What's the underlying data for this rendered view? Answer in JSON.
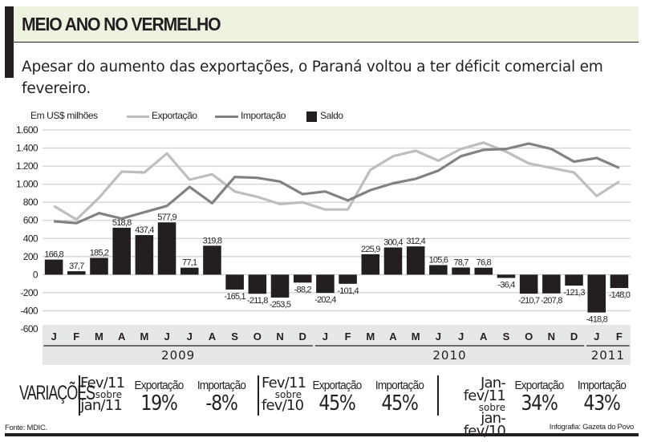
{
  "header": {
    "title": "MEIO ANO NO VERMELHO",
    "subtitle": "Apesar do aumento das exportações, o Paraná voltou a ter déficit comercial em fevereiro."
  },
  "legend": {
    "unit": "Em US$ milhões",
    "items": [
      {
        "label": "Exportação",
        "kind": "line",
        "color": "#bcbec0"
      },
      {
        "label": "Importação",
        "kind": "line",
        "color": "#808285"
      },
      {
        "label": "Saldo",
        "kind": "bar",
        "color": "#231f20"
      }
    ]
  },
  "chart_data": {
    "type": "bar+line",
    "title": "MEIO ANO NO VERMELHO",
    "ylabel": "Em US$ milhões",
    "xlabel": "",
    "ylim": [
      -600,
      1600
    ],
    "yticks": [
      1600,
      1400,
      1200,
      1000,
      800,
      600,
      400,
      200,
      0,
      -200,
      -400,
      -600
    ],
    "ytick_labels": [
      "1.600",
      "1.400",
      "1.200",
      "1.000",
      "800",
      "600",
      "400",
      "200",
      "0",
      "-200",
      "-400",
      "-600"
    ],
    "grid": true,
    "legend_position": "top",
    "categories": [
      "J",
      "F",
      "M",
      "A",
      "M",
      "J",
      "J",
      "A",
      "S",
      "O",
      "N",
      "D",
      "J",
      "F",
      "M",
      "A",
      "M",
      "J",
      "J",
      "A",
      "S",
      "O",
      "N",
      "D",
      "J",
      "F"
    ],
    "years": [
      {
        "label": "2009",
        "start": 0,
        "end": 11
      },
      {
        "label": "2010",
        "start": 12,
        "end": 23
      },
      {
        "label": "2011",
        "start": 24,
        "end": 25
      }
    ],
    "series": [
      {
        "name": "Saldo",
        "kind": "bar",
        "color": "#231f20",
        "values": [
          166.8,
          37.7,
          185.2,
          518.8,
          437.4,
          577.9,
          77.1,
          319.8,
          -165.1,
          -211.8,
          -253.5,
          -88.2,
          -202.4,
          -101.4,
          225.9,
          300.4,
          312.4,
          105.6,
          78.7,
          76.8,
          -36.4,
          -210.7,
          -207.8,
          -121.3,
          -418.8,
          -148.0
        ],
        "labels": [
          "166,8",
          "37,7",
          "185,2",
          "518,8",
          "437,4",
          "577,9",
          "77,1",
          "319,8",
          "-165,1",
          "-211,8",
          "-253,5",
          "-88,2",
          "-202,4",
          "-101,4",
          "225,9",
          "300,4",
          "312,4",
          "105,6",
          "78,7",
          "76,8",
          "-36,4",
          "-210,7",
          "-207,8",
          "-121,3",
          "-418,8",
          "-148,0"
        ]
      },
      {
        "name": "Exportação",
        "kind": "line",
        "color": "#bcbec0",
        "values": [
          760,
          610,
          850,
          1140,
          1130,
          1340,
          1050,
          1110,
          920,
          860,
          780,
          800,
          720,
          720,
          1160,
          1310,
          1370,
          1260,
          1390,
          1460,
          1360,
          1230,
          1180,
          1130,
          870,
          1030
        ]
      },
      {
        "name": "Importação",
        "kind": "line",
        "color": "#808285",
        "values": [
          590,
          570,
          680,
          620,
          690,
          760,
          970,
          790,
          1080,
          1070,
          1030,
          890,
          920,
          820,
          935,
          1010,
          1060,
          1150,
          1310,
          1380,
          1390,
          1450,
          1390,
          1250,
          1290,
          1180
        ]
      }
    ]
  },
  "variacoes": {
    "title": "VARIAÇÕES",
    "groups": [
      {
        "period_top": "Fev/11",
        "sobre": "sobre",
        "period_bottom": "jan/11",
        "exp_label": "Exportação",
        "exp_value": "19%",
        "imp_label": "Importação",
        "imp_value": "-8%"
      },
      {
        "period_top": "Fev/11",
        "sobre": "sobre",
        "period_bottom": "fev/10",
        "exp_label": "Exportação",
        "exp_value": "45%",
        "imp_label": "Importação",
        "imp_value": "45%"
      },
      {
        "period_top": "Jan-fev/11",
        "sobre": "sobre",
        "period_bottom": "jan-fev/10",
        "exp_label": "Exportação",
        "exp_value": "34%",
        "imp_label": "Importação",
        "imp_value": "43%"
      }
    ]
  },
  "footer": {
    "source": "Fonte: MDIC.",
    "credit": "Infografia: Gazeta do Povo"
  }
}
